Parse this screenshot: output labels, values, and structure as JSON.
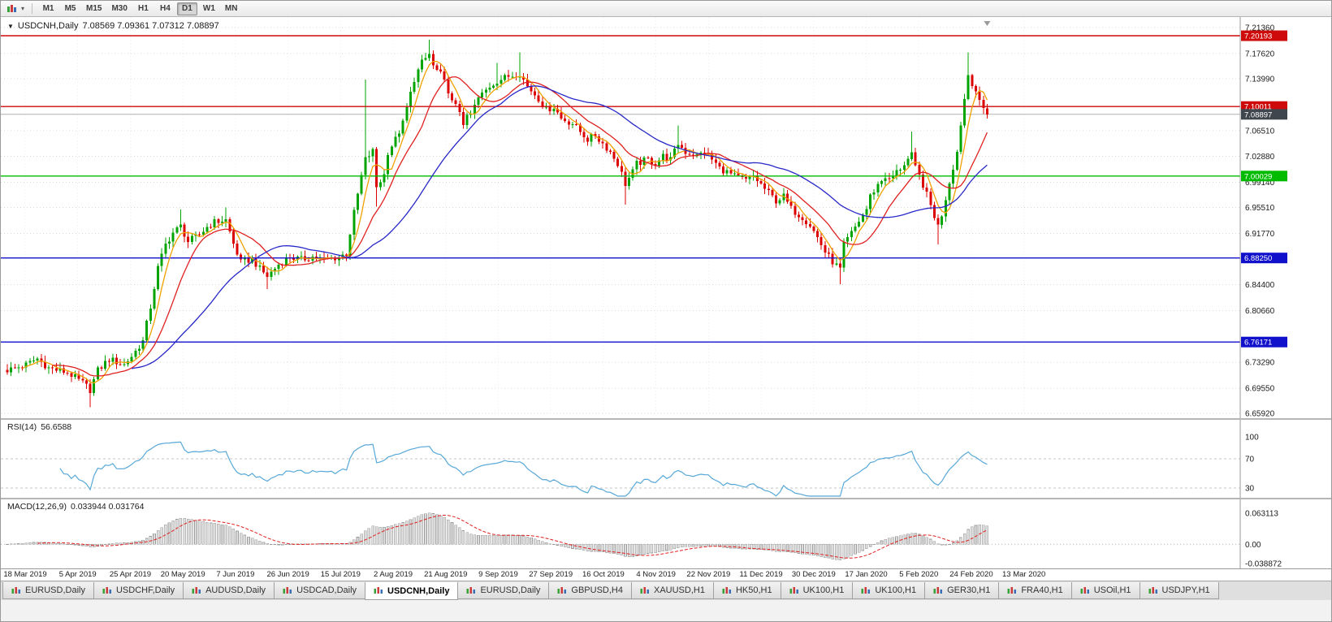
{
  "toolbar": {
    "timeframes": [
      "M1",
      "M5",
      "M15",
      "M30",
      "H1",
      "H4",
      "D1",
      "W1",
      "MN"
    ],
    "active_timeframe": "D1",
    "dropdown_glyph": "▾"
  },
  "chart": {
    "header_glyph": "▼",
    "symbol": "USDCNH,Daily",
    "ohlc": "7.08569 7.09361 7.07312 7.08897"
  },
  "rsi": {
    "name": "RSI(14)",
    "value": "56.6588",
    "levels": [
      "100",
      "70",
      "30"
    ],
    "dashed_levels": [
      70,
      30
    ],
    "line_color": "#57a8d8"
  },
  "macd": {
    "name": "MACD(12,26,9)",
    "value": "0.033944 0.031764",
    "axis_labels": [
      "0.063113",
      "0.00",
      "-0.038872"
    ],
    "histogram_fill": "#dcdcdc",
    "histogram_stroke": "#9c9c9c",
    "signal_color": "#e02020"
  },
  "tabs": {
    "active_index": 4,
    "items": [
      "EURUSD,Daily",
      "USDCHF,Daily",
      "AUDUSD,Daily",
      "USDCAD,Daily",
      "USDCNH,Daily",
      "EURUSD,Daily",
      "GBPUSD,H4",
      "XAUUSD,H1",
      "HK50,H1",
      "UK100,H1",
      "UK100,H1",
      "GER30,H1",
      "FRA40,H1",
      "USOil,H1",
      "USDJPY,H1"
    ]
  },
  "chart_data": {
    "type": "candlestick",
    "symbol": "USDCNH",
    "period": "Daily",
    "bars": 261,
    "current_price": 7.08897,
    "current_price_label": "7.08897",
    "ohlc_current": {
      "open": 7.08569,
      "high": 7.09361,
      "low": 7.07312,
      "close": 7.08897
    },
    "y_axis": {
      "max": 7.2136,
      "min": 6.6592,
      "ticks": [
        "7.21360",
        "7.17620",
        "7.13990",
        "7.06510",
        "7.02880",
        "6.99140",
        "6.95510",
        "6.91770",
        "6.84400",
        "6.80660",
        "6.73290",
        "6.69550",
        "6.65920"
      ]
    },
    "x_labels": [
      "18 Mar 2019",
      "5 Apr 2019",
      "25 Apr 2019",
      "20 May 2019",
      "7 Jun 2019",
      "26 Jun 2019",
      "15 Jul 2019",
      "2 Aug 2019",
      "21 Aug 2019",
      "9 Sep 2019",
      "27 Sep 2019",
      "16 Oct 2019",
      "4 Nov 2019",
      "22 Nov 2019",
      "11 Dec 2019",
      "30 Dec 2019",
      "17 Jan 2020",
      "5 Feb 2020",
      "24 Feb 2020",
      "13 Mar 2020"
    ],
    "levels": [
      {
        "price": 7.20193,
        "label": "7.20193",
        "color": "#cf0a0a"
      },
      {
        "price": 7.10011,
        "label": "7.10011",
        "color": "#cf0a0a"
      },
      {
        "price": 7.00029,
        "label": "7.00029",
        "color": "#00bb00"
      },
      {
        "price": 6.8825,
        "label": "6.88250",
        "color": "#1111cc"
      },
      {
        "price": 6.76171,
        "label": "6.76171",
        "color": "#1111cc"
      }
    ],
    "candle_colors": {
      "up": "#00a400",
      "down": "#dd0000"
    },
    "moving_averages": [
      {
        "period": 5,
        "color": "#f0a000"
      },
      {
        "period": 13,
        "color": "#e02020"
      },
      {
        "period": 34,
        "color": "#2828c8"
      }
    ],
    "macd_scale": {
      "max": 0.068,
      "min": -0.044
    },
    "close_jitter": 0.005,
    "wick_jitter": 0.007,
    "price_path": [
      [
        0,
        6.721
      ],
      [
        5,
        6.729
      ],
      [
        8,
        6.738
      ],
      [
        11,
        6.724
      ],
      [
        16,
        6.718
      ],
      [
        20,
        6.703
      ],
      [
        22,
        6.693
      ],
      [
        24,
        6.721
      ],
      [
        27,
        6.737
      ],
      [
        31,
        6.729
      ],
      [
        33,
        6.741
      ],
      [
        36,
        6.763
      ],
      [
        38,
        6.812
      ],
      [
        40,
        6.868
      ],
      [
        42,
        6.902
      ],
      [
        44,
        6.919
      ],
      [
        46,
        6.928
      ],
      [
        48,
        6.906
      ],
      [
        51,
        6.916
      ],
      [
        53,
        6.927
      ],
      [
        55,
        6.934
      ],
      [
        58,
        6.937
      ],
      [
        60,
        6.903
      ],
      [
        62,
        6.876
      ],
      [
        65,
        6.881
      ],
      [
        67,
        6.867
      ],
      [
        69,
        6.856
      ],
      [
        72,
        6.873
      ],
      [
        75,
        6.884
      ],
      [
        78,
        6.88
      ],
      [
        81,
        6.884
      ],
      [
        84,
        6.88
      ],
      [
        88,
        6.884
      ],
      [
        90,
        6.889
      ],
      [
        92,
        6.947
      ],
      [
        94,
        7.0
      ],
      [
        95,
        7.024
      ],
      [
        97,
        7.036
      ],
      [
        98,
        6.985
      ],
      [
        100,
        7.002
      ],
      [
        101,
        7.035
      ],
      [
        103,
        7.053
      ],
      [
        105,
        7.076
      ],
      [
        106,
        7.098
      ],
      [
        108,
        7.14
      ],
      [
        110,
        7.163
      ],
      [
        112,
        7.175
      ],
      [
        113,
        7.158
      ],
      [
        115,
        7.146
      ],
      [
        117,
        7.124
      ],
      [
        118,
        7.106
      ],
      [
        120,
        7.094
      ],
      [
        121,
        7.077
      ],
      [
        123,
        7.089
      ],
      [
        125,
        7.112
      ],
      [
        128,
        7.129
      ],
      [
        130,
        7.137
      ],
      [
        133,
        7.144
      ],
      [
        136,
        7.148
      ],
      [
        138,
        7.129
      ],
      [
        141,
        7.112
      ],
      [
        143,
        7.095
      ],
      [
        145,
        7.1
      ],
      [
        147,
        7.083
      ],
      [
        150,
        7.076
      ],
      [
        152,
        7.064
      ],
      [
        154,
        7.053
      ],
      [
        156,
        7.059
      ],
      [
        158,
        7.047
      ],
      [
        160,
        7.035
      ],
      [
        162,
        7.018
      ],
      [
        164,
        6.989
      ],
      [
        166,
        7.006
      ],
      [
        167,
        7.018
      ],
      [
        170,
        7.024
      ],
      [
        172,
        7.018
      ],
      [
        174,
        7.029
      ],
      [
        176,
        7.024
      ],
      [
        178,
        7.047
      ],
      [
        180,
        7.035
      ],
      [
        183,
        7.029
      ],
      [
        185,
        7.035
      ],
      [
        187,
        7.024
      ],
      [
        189,
        7.012
      ],
      [
        191,
        7.006
      ],
      [
        193,
        7.0
      ],
      [
        196,
        6.994
      ],
      [
        198,
        7.0
      ],
      [
        200,
        6.988
      ],
      [
        202,
        6.976
      ],
      [
        204,
        6.965
      ],
      [
        206,
        6.971
      ],
      [
        208,
        6.953
      ],
      [
        211,
        6.941
      ],
      [
        213,
        6.93
      ],
      [
        215,
        6.912
      ],
      [
        217,
        6.891
      ],
      [
        219,
        6.877
      ],
      [
        221,
        6.866
      ],
      [
        222,
        6.901
      ],
      [
        224,
        6.918
      ],
      [
        226,
        6.936
      ],
      [
        228,
        6.953
      ],
      [
        229,
        6.971
      ],
      [
        231,
        6.988
      ],
      [
        233,
        7.0
      ],
      [
        234,
        6.994
      ],
      [
        236,
        7.006
      ],
      [
        238,
        7.018
      ],
      [
        240,
        7.03
      ],
      [
        241,
        7.012
      ],
      [
        243,
        6.988
      ],
      [
        245,
        6.958
      ],
      [
        247,
        6.928
      ],
      [
        248,
        6.945
      ],
      [
        250,
        6.992
      ],
      [
        252,
        7.035
      ],
      [
        253,
        7.076
      ],
      [
        255,
        7.146
      ],
      [
        257,
        7.123
      ],
      [
        258,
        7.105
      ],
      [
        260,
        7.089
      ]
    ],
    "spikes": [
      {
        "i": 22,
        "low": 6.668
      },
      {
        "i": 46,
        "high": 6.952
      },
      {
        "i": 58,
        "high": 6.955
      },
      {
        "i": 69,
        "low": 6.838
      },
      {
        "i": 95,
        "high": 7.139
      },
      {
        "i": 98,
        "low": 6.956
      },
      {
        "i": 112,
        "high": 7.196
      },
      {
        "i": 130,
        "high": 7.163
      },
      {
        "i": 136,
        "high": 7.178
      },
      {
        "i": 164,
        "low": 6.959
      },
      {
        "i": 178,
        "high": 7.073
      },
      {
        "i": 221,
        "low": 6.845
      },
      {
        "i": 240,
        "high": 7.064
      },
      {
        "i": 247,
        "low": 6.902
      },
      {
        "i": 255,
        "high": 7.178
      }
    ]
  }
}
